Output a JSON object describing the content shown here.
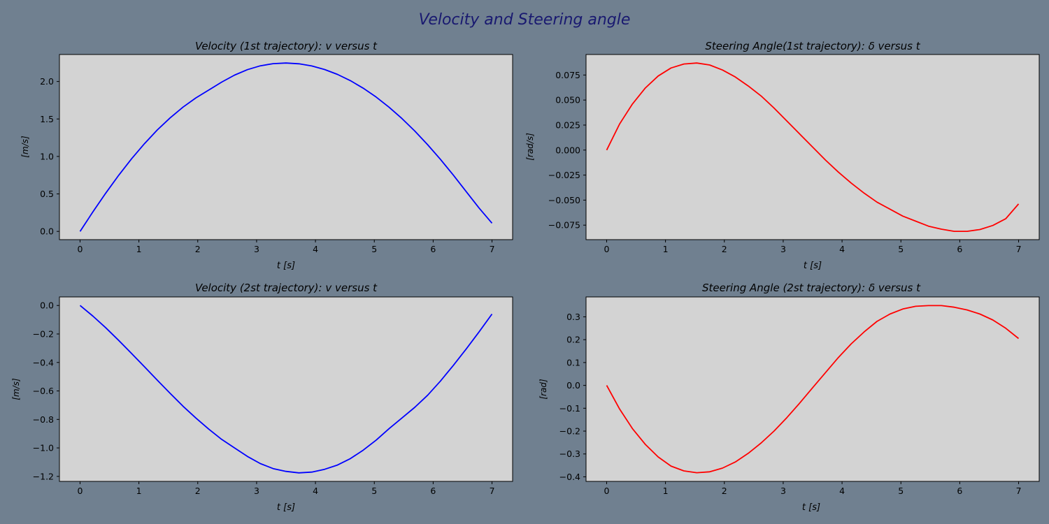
{
  "figure": {
    "title": "Velocity and Steering angle",
    "title_color": "#191970",
    "background": "#708090",
    "axes_facecolor": "#d3d3d3"
  },
  "chart_data": [
    {
      "type": "line",
      "title": "Velocity (1st trajectory): v versus t",
      "xlabel": "t [s]",
      "ylabel": "[m/s]",
      "xlim": [
        -0.35,
        7.35
      ],
      "ylim": [
        -0.11,
        2.36
      ],
      "xticks": [
        0,
        1,
        2,
        3,
        4,
        5,
        6,
        7
      ],
      "xtick_labels": [
        "0",
        "1",
        "2",
        "3",
        "4",
        "5",
        "6",
        "7"
      ],
      "yticks": [
        0.0,
        0.5,
        1.0,
        1.5,
        2.0
      ],
      "ytick_labels": [
        "0.0",
        "0.5",
        "1.0",
        "1.5",
        "2.0"
      ],
      "grid": false,
      "series": [
        {
          "color": "#0000ff",
          "x": [
            0,
            0.2188,
            0.4375,
            0.6563,
            0.875,
            1.0938,
            1.3125,
            1.5313,
            1.75,
            1.9688,
            2.1875,
            2.4063,
            2.625,
            2.8438,
            3.0625,
            3.2813,
            3.5,
            3.7188,
            3.9375,
            4.1563,
            4.375,
            4.5938,
            4.8125,
            5.0313,
            5.25,
            5.4688,
            5.6875,
            5.9063,
            6.125,
            6.3438,
            6.5625,
            6.7813,
            7.0
          ],
          "y": [
            0.0,
            0.262,
            0.512,
            0.748,
            0.968,
            1.17,
            1.353,
            1.515,
            1.658,
            1.781,
            1.886,
            1.992,
            2.085,
            2.158,
            2.209,
            2.238,
            2.246,
            2.236,
            2.207,
            2.16,
            2.094,
            2.011,
            1.91,
            1.792,
            1.657,
            1.506,
            1.339,
            1.157,
            0.96,
            0.75,
            0.53,
            0.311,
            0.11
          ]
        }
      ]
    },
    {
      "type": "line",
      "title": "Steering Angle(1st trajectory): δ versus t",
      "xlabel": "t [s]",
      "ylabel": "[rad/s]",
      "xlim": [
        -0.35,
        7.35
      ],
      "ylim": [
        -0.0895,
        0.0955
      ],
      "xticks": [
        0,
        1,
        2,
        3,
        4,
        5,
        6,
        7
      ],
      "xtick_labels": [
        "0",
        "1",
        "2",
        "3",
        "4",
        "5",
        "6",
        "7"
      ],
      "yticks": [
        -0.075,
        -0.05,
        -0.025,
        0.0,
        0.025,
        0.05,
        0.075
      ],
      "ytick_labels": [
        "−0.075",
        "−0.050",
        "−0.025",
        "0.000",
        "0.025",
        "0.050",
        "0.075"
      ],
      "grid": false,
      "series": [
        {
          "color": "#ff0000",
          "x": [
            0,
            0.2188,
            0.4375,
            0.6563,
            0.875,
            1.0938,
            1.3125,
            1.5313,
            1.75,
            1.9688,
            2.1875,
            2.4063,
            2.625,
            2.8438,
            3.0625,
            3.2813,
            3.5,
            3.7188,
            3.9375,
            4.1563,
            4.375,
            4.5938,
            4.8125,
            5.0313,
            5.25,
            5.4688,
            5.6875,
            5.9063,
            6.125,
            6.3438,
            6.5625,
            6.7813,
            7.0
          ],
          "y": [
            0.0,
            0.026,
            0.046,
            0.062,
            0.074,
            0.082,
            0.086,
            0.087,
            0.085,
            0.08,
            0.073,
            0.064,
            0.054,
            0.042,
            0.029,
            0.016,
            0.003,
            -0.01,
            -0.022,
            -0.033,
            -0.043,
            -0.052,
            -0.059,
            -0.066,
            -0.071,
            -0.076,
            -0.079,
            -0.0812,
            -0.0812,
            -0.0794,
            -0.0753,
            -0.0686,
            -0.0538
          ]
        }
      ]
    },
    {
      "type": "line",
      "title": "Velocity (2st trajectory): v versus t",
      "xlabel": "t [s]",
      "ylabel": "[m/s]",
      "xlim": [
        -0.35,
        7.35
      ],
      "ylim": [
        -1.235,
        0.06
      ],
      "xticks": [
        0,
        1,
        2,
        3,
        4,
        5,
        6,
        7
      ],
      "xtick_labels": [
        "0",
        "1",
        "2",
        "3",
        "4",
        "5",
        "6",
        "7"
      ],
      "yticks": [
        -1.2,
        -1.0,
        -0.8,
        -0.6,
        -0.4,
        -0.2,
        0.0
      ],
      "ytick_labels": [
        "−1.2",
        "−1.0",
        "−0.8",
        "−0.6",
        "−0.4",
        "−0.2",
        "0.0"
      ],
      "grid": false,
      "series": [
        {
          "color": "#0000ff",
          "x": [
            0,
            0.2188,
            0.4375,
            0.6563,
            0.875,
            1.0938,
            1.3125,
            1.5313,
            1.75,
            1.9688,
            2.1875,
            2.4063,
            2.625,
            2.8438,
            3.0625,
            3.2813,
            3.5,
            3.7188,
            3.9375,
            4.1563,
            4.375,
            4.5938,
            4.8125,
            5.0313,
            5.25,
            5.4688,
            5.6875,
            5.9063,
            6.125,
            6.3438,
            6.5625,
            6.7813,
            7.0
          ],
          "y": [
            0.0,
            -0.075,
            -0.157,
            -0.245,
            -0.337,
            -0.43,
            -0.524,
            -0.617,
            -0.707,
            -0.79,
            -0.868,
            -0.94,
            -1.0,
            -1.06,
            -1.11,
            -1.145,
            -1.165,
            -1.175,
            -1.17,
            -1.15,
            -1.12,
            -1.075,
            -1.015,
            -0.945,
            -0.865,
            -0.79,
            -0.715,
            -0.63,
            -0.53,
            -0.42,
            -0.305,
            -0.185,
            -0.06
          ]
        }
      ]
    },
    {
      "type": "line",
      "title": "Steering Angle (2st trajectory): δ versus t",
      "xlabel": "t [s]",
      "ylabel": "[rad]",
      "xlim": [
        -0.35,
        7.35
      ],
      "ylim": [
        -0.42,
        0.387
      ],
      "xticks": [
        0,
        1,
        2,
        3,
        4,
        5,
        6,
        7
      ],
      "xtick_labels": [
        "0",
        "1",
        "2",
        "3",
        "4",
        "5",
        "6",
        "7"
      ],
      "yticks": [
        -0.4,
        -0.3,
        -0.2,
        -0.1,
        0.0,
        0.1,
        0.2,
        0.3
      ],
      "ytick_labels": [
        "−0.4",
        "−0.3",
        "−0.2",
        "−0.1",
        "0.0",
        "0.1",
        "0.2",
        "0.3"
      ],
      "grid": false,
      "series": [
        {
          "color": "#ff0000",
          "x": [
            0,
            0.2188,
            0.4375,
            0.6563,
            0.875,
            1.0938,
            1.3125,
            1.5313,
            1.75,
            1.9688,
            2.1875,
            2.4063,
            2.625,
            2.8438,
            3.0625,
            3.2813,
            3.5,
            3.7188,
            3.9375,
            4.1563,
            4.375,
            4.5938,
            4.8125,
            5.0313,
            5.25,
            5.4688,
            5.6875,
            5.9063,
            6.125,
            6.3438,
            6.5625,
            6.7813,
            7.0
          ],
          "y": [
            0.0,
            -0.103,
            -0.189,
            -0.258,
            -0.313,
            -0.353,
            -0.374,
            -0.382,
            -0.378,
            -0.362,
            -0.335,
            -0.297,
            -0.252,
            -0.2,
            -0.141,
            -0.077,
            -0.01,
            0.056,
            0.122,
            0.182,
            0.234,
            0.28,
            0.312,
            0.334,
            0.346,
            0.349,
            0.349,
            0.342,
            0.33,
            0.312,
            0.286,
            0.25,
            0.205
          ]
        }
      ]
    }
  ]
}
